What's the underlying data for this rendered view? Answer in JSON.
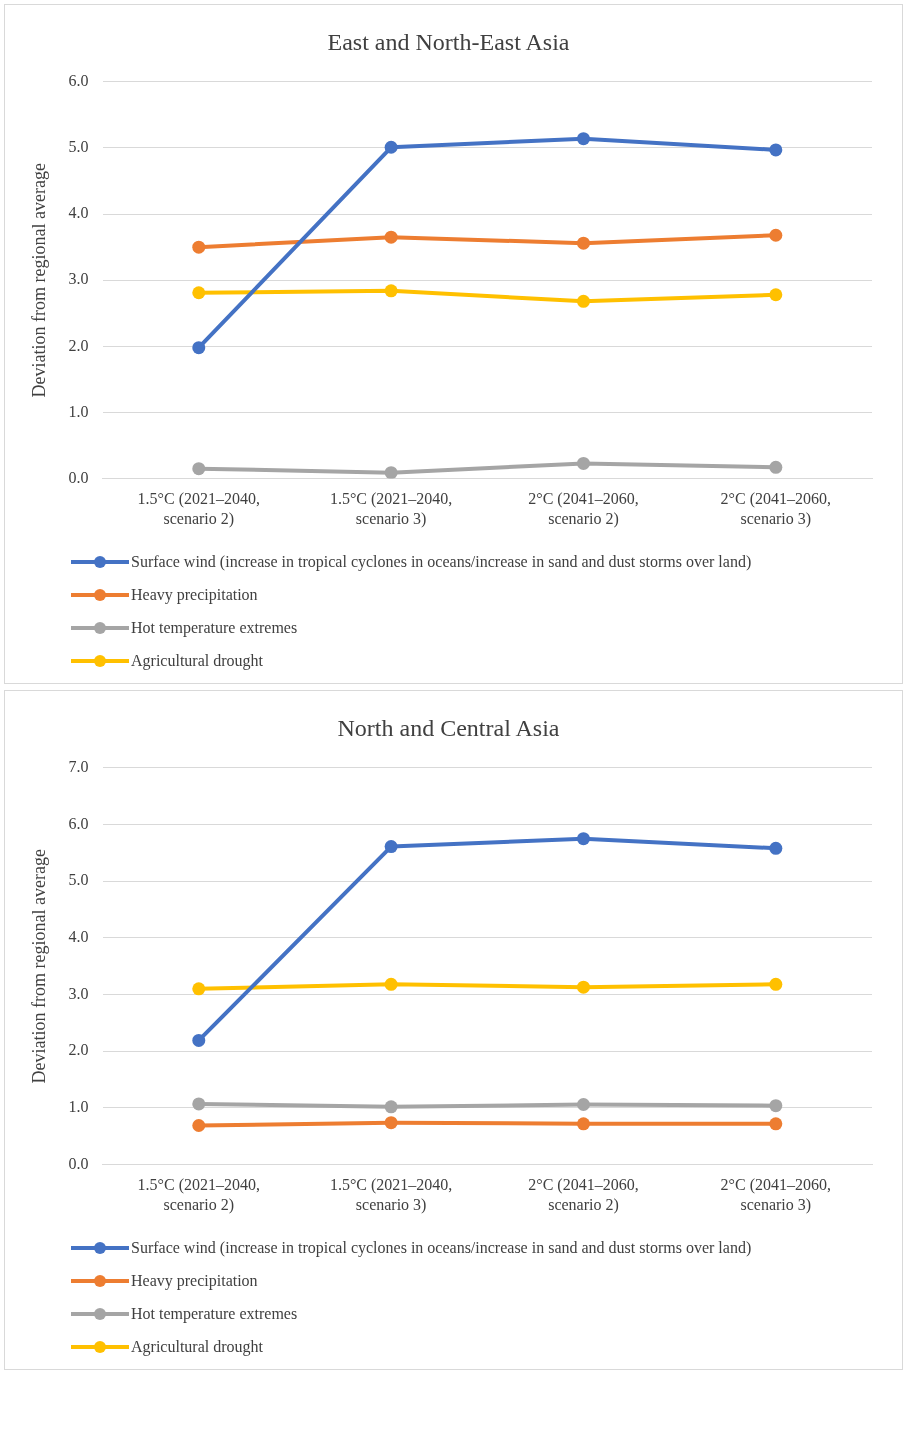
{
  "chart_data": [
    {
      "type": "line",
      "title": "East and North-East Asia",
      "ylabel": "Deviation from regional average",
      "categories": [
        "1.5°C (2021–2040, scenario 2)",
        "1.5°C (2021–2040, scenario 3)",
        "2°C (2041–2060, scenario 2)",
        "2°C (2041–2060, scenario 3)"
      ],
      "ylim": [
        0,
        6
      ],
      "yticks": [
        {
          "value": 0,
          "label": "0.0"
        },
        {
          "value": 1,
          "label": "1.0"
        },
        {
          "value": 2,
          "label": "2.0"
        },
        {
          "value": 3,
          "label": "3.0"
        },
        {
          "value": 4,
          "label": "4.0"
        },
        {
          "value": 5,
          "label": "5.0"
        },
        {
          "value": 6,
          "label": "6.0"
        }
      ],
      "grid": "y",
      "legend": "bottom",
      "marker": "circle",
      "series": [
        {
          "name": "Surface wind (increase in tropical cyclones in oceans/increase in sand and dust storms over land)",
          "color": "#4472c4",
          "values": [
            1.98,
            5.01,
            5.14,
            4.97
          ]
        },
        {
          "name": "Heavy precipitation",
          "color": "#ed7d31",
          "values": [
            3.5,
            3.65,
            3.56,
            3.68
          ]
        },
        {
          "name": "Hot temperature extremes",
          "color": "#a5a5a5",
          "values": [
            0.15,
            0.09,
            0.23,
            0.17
          ]
        },
        {
          "name": "Agricultural drought",
          "color": "#ffc000",
          "values": [
            2.81,
            2.84,
            2.68,
            2.78
          ]
        }
      ]
    },
    {
      "type": "line",
      "title": "North and Central Asia",
      "ylabel": "Deviation from regional average",
      "categories": [
        "1.5°C (2021–2040, scenario 2)",
        "1.5°C (2021–2040, scenario 3)",
        "2°C (2041–2060, scenario 2)",
        "2°C (2041–2060, scenario 3)"
      ],
      "ylim": [
        0,
        7
      ],
      "yticks": [
        {
          "value": 0,
          "label": "0.0"
        },
        {
          "value": 1,
          "label": "1.0"
        },
        {
          "value": 2,
          "label": "2.0"
        },
        {
          "value": 3,
          "label": "3.0"
        },
        {
          "value": 4,
          "label": "4.0"
        },
        {
          "value": 5,
          "label": "5.0"
        },
        {
          "value": 6,
          "label": "6.0"
        },
        {
          "value": 7,
          "label": "7.0"
        }
      ],
      "grid": "y",
      "legend": "bottom",
      "marker": "circle",
      "series": [
        {
          "name": "Surface wind (increase in tropical cyclones in oceans/increase in sand and dust storms over land)",
          "color": "#4472c4",
          "values": [
            2.19,
            5.61,
            5.75,
            5.58
          ]
        },
        {
          "name": "Heavy precipitation",
          "color": "#ed7d31",
          "values": [
            0.69,
            0.74,
            0.72,
            0.72
          ]
        },
        {
          "name": "Hot temperature extremes",
          "color": "#a5a5a5",
          "values": [
            1.07,
            1.02,
            1.06,
            1.04
          ]
        },
        {
          "name": "Agricultural drought",
          "color": "#ffc000",
          "values": [
            3.1,
            3.18,
            3.13,
            3.18
          ]
        }
      ]
    }
  ]
}
